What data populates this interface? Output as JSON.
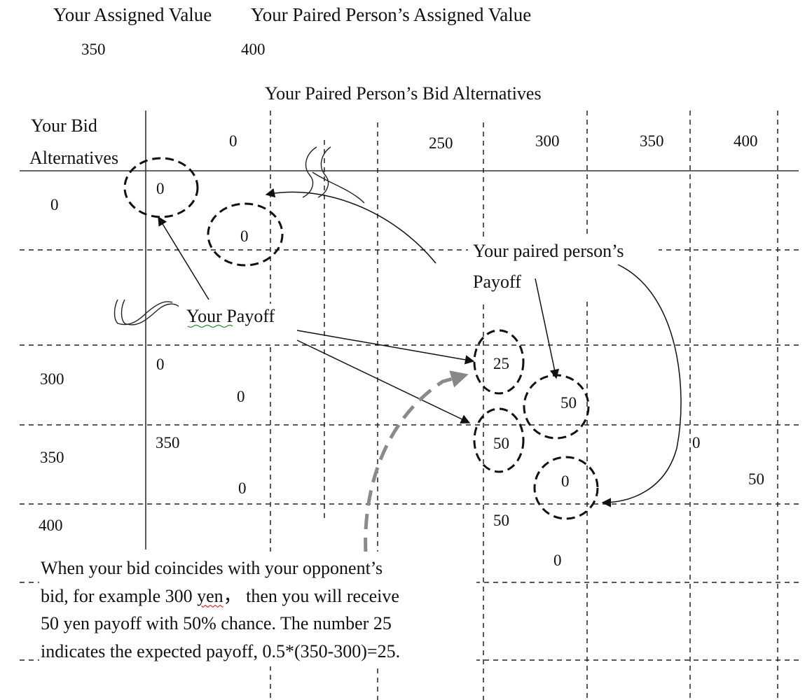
{
  "header": {
    "your_assigned_value_label": "Your Assigned Value",
    "paired_assigned_value_label": "Your Paired Person’s Assigned Value",
    "your_assigned_value": "350",
    "paired_assigned_value": "400"
  },
  "table": {
    "column_axis_title": "Your Paired Person’s Bid Alternatives",
    "row_axis_title_line1": "Your Bid",
    "row_axis_title_line2": "Alternatives",
    "column_headers": [
      "0",
      "250",
      "300",
      "350",
      "400"
    ],
    "row_headers": [
      "0",
      "300",
      "350",
      "400"
    ],
    "cells": {
      "r0_c0_you": "0",
      "r0_c0_paired": "0",
      "r300_c0_you": "0",
      "r300_c0_paired": "0",
      "r300_c300_you": "25",
      "r300_c300_paired": "50",
      "r350_c0_you": "350",
      "r350_c0_paired": "0",
      "r350_c300_you": "50",
      "r350_c300_paired": "0",
      "r350_c400_you": "0",
      "r350_c400_paired": "50",
      "r400_c300_you": "50",
      "r400_c300_paired": "0"
    }
  },
  "annotations": {
    "your_payoff": "Your Payoff",
    "paired_payoff_line1": "Your paired person’s",
    "paired_payoff_line2": "Payoff"
  },
  "note": {
    "line1": "When your bid coincides with your opponent’s",
    "line2_pre": "bid, for example 300 ",
    "line2_yen": "yen",
    "line2_post": "，  then you will receive",
    "line3": "50 yen payoff with 50% chance. The number 25",
    "line4": "indicates the expected payoff, 0.5*(350-300)=25."
  }
}
